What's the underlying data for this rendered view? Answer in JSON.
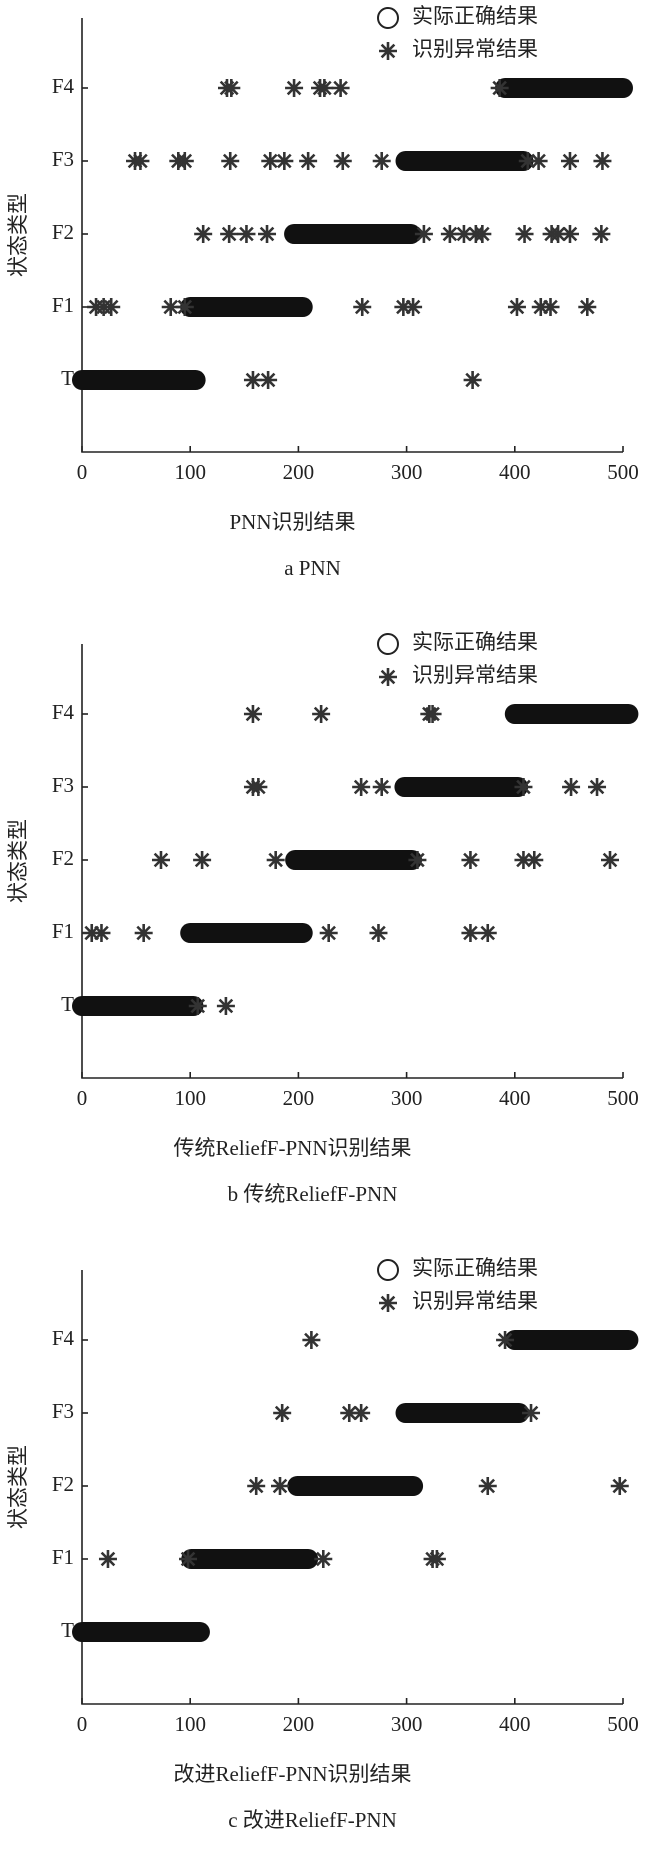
{
  "chart_data": [
    {
      "type": "scatter",
      "caption": "a PNN",
      "xlabel": "PNN识别结果",
      "ylabel": "状态类型",
      "categories": [
        "T",
        "F1",
        "F2",
        "F3",
        "F4"
      ],
      "xlim": [
        0,
        500
      ],
      "xticks": [
        0,
        100,
        200,
        300,
        400,
        500
      ],
      "series": [
        {
          "name": "实际正确结果",
          "marker": "circle",
          "color": "#111111",
          "x_start": [
            0,
            100,
            196,
            299,
            391
          ],
          "x_end": [
            105,
            204,
            304,
            408,
            500
          ]
        },
        {
          "name": "识别异常结果",
          "marker": "asterisk",
          "color": "#333333",
          "x": [
            158,
            172,
            361,
            13,
            20,
            27,
            82,
            95,
            259,
            297,
            306,
            402,
            424,
            433,
            467,
            112,
            136,
            152,
            171,
            316,
            340,
            353,
            364,
            370,
            409,
            434,
            440,
            451,
            480,
            49,
            54,
            89,
            95,
            137,
            174,
            187,
            209,
            241,
            277,
            412,
            422,
            451,
            481,
            134,
            138,
            196,
            220,
            224,
            239,
            386
          ],
          "y": [
            "T",
            "T",
            "T",
            "F1",
            "F1",
            "F1",
            "F1",
            "F1",
            "F1",
            "F1",
            "F1",
            "F1",
            "F1",
            "F1",
            "F1",
            "F2",
            "F2",
            "F2",
            "F2",
            "F2",
            "F2",
            "F2",
            "F2",
            "F2",
            "F2",
            "F2",
            "F2",
            "F2",
            "F2",
            "F3",
            "F3",
            "F3",
            "F3",
            "F3",
            "F3",
            "F3",
            "F3",
            "F3",
            "F3",
            "F3",
            "F3",
            "F3",
            "F3",
            "F4",
            "F4",
            "F4",
            "F4",
            "F4",
            "F4",
            "F4"
          ]
        }
      ]
    },
    {
      "type": "scatter",
      "caption": "b 传统ReliefF-PNN",
      "xlabel": "传统ReliefF-PNN识别结果",
      "ylabel": "状态类型",
      "categories": [
        "T",
        "F1",
        "F2",
        "F3",
        "F4"
      ],
      "xlim": [
        0,
        500
      ],
      "xticks": [
        0,
        100,
        200,
        300,
        400,
        500
      ],
      "series": [
        {
          "name": "实际正确结果",
          "marker": "circle",
          "color": "#111111",
          "x_start": [
            0,
            100,
            197,
            298,
            400
          ],
          "x_end": [
            103,
            204,
            305,
            403,
            505
          ]
        },
        {
          "name": "识别异常结果",
          "marker": "asterisk",
          "color": "#333333",
          "x": [
            107,
            133,
            9,
            18,
            57,
            228,
            274,
            359,
            375,
            73,
            111,
            179,
            310,
            359,
            408,
            418,
            488,
            158,
            163,
            258,
            277,
            408,
            452,
            476,
            158,
            221,
            321,
            324
          ],
          "y": [
            "T",
            "T",
            "F1",
            "F1",
            "F1",
            "F1",
            "F1",
            "F1",
            "F1",
            "F2",
            "F2",
            "F2",
            "F2",
            "F2",
            "F2",
            "F2",
            "F2",
            "F3",
            "F3",
            "F3",
            "F3",
            "F3",
            "F3",
            "F3",
            "F4",
            "F4",
            "F4",
            "F4"
          ]
        }
      ]
    },
    {
      "type": "scatter",
      "caption": "c 改进ReliefF-PNN",
      "xlabel": "改进ReliefF-PNN识别结果",
      "ylabel": "状态类型",
      "categories": [
        "T",
        "F1",
        "F2",
        "F3",
        "F4"
      ],
      "xlim": [
        0,
        500
      ],
      "xticks": [
        0,
        100,
        200,
        300,
        400,
        500
      ],
      "series": [
        {
          "name": "实际正确结果",
          "marker": "circle",
          "color": "#111111",
          "x_start": [
            0,
            101,
            199,
            299,
            400
          ],
          "x_end": [
            109,
            209,
            306,
            404,
            505
          ]
        },
        {
          "name": "识别异常结果",
          "marker": "asterisk",
          "color": "#333333",
          "x": [
            24,
            98,
            223,
            324,
            328,
            161,
            183,
            375,
            497,
            185,
            247,
            258,
            415,
            212,
            391
          ],
          "y": [
            "F1",
            "F1",
            "F1",
            "F1",
            "F1",
            "F2",
            "F2",
            "F2",
            "F2",
            "F3",
            "F3",
            "F3",
            "F3",
            "F4",
            "F4"
          ]
        }
      ]
    }
  ]
}
